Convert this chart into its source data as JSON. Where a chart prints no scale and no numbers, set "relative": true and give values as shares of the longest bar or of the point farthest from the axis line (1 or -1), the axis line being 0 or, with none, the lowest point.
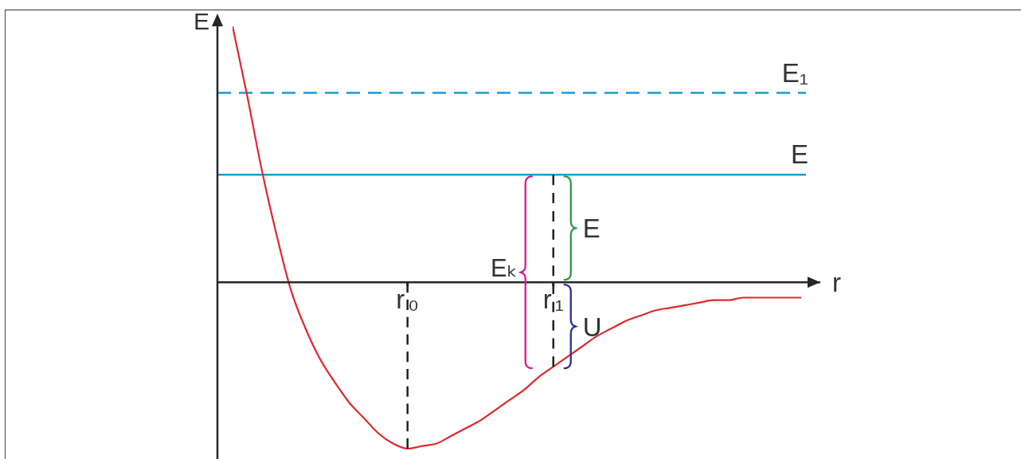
{
  "chart_data": {
    "type": "line",
    "relative": true,
    "xlabel": "r",
    "ylabel": "E",
    "marker": "none",
    "categories": [
      null,
      null,
      null,
      null,
      null,
      null,
      null,
      null,
      null,
      null,
      null,
      null,
      "r₀",
      null,
      null,
      null,
      null,
      null,
      null,
      null,
      null,
      null,
      "r₁",
      null,
      null,
      null,
      null,
      null,
      null,
      null,
      null,
      null,
      null,
      null,
      null,
      null,
      null,
      null,
      null,
      null
    ],
    "series": [
      {
        "color": "#e3262d",
        "values": [
          1.0,
          0.73,
          0.44,
          0.19,
          -0.03,
          -0.18,
          -0.3,
          -0.39,
          -0.47,
          -0.53,
          -0.59,
          -0.63,
          -0.65,
          -0.64,
          -0.63,
          -0.6,
          -0.57,
          -0.54,
          -0.5,
          -0.46,
          -0.42,
          -0.37,
          -0.33,
          -0.29,
          -0.25,
          -0.21,
          -0.18,
          -0.15,
          -0.13,
          -0.11,
          -0.1,
          -0.09,
          -0.08,
          -0.07,
          -0.07,
          -0.06,
          -0.06,
          -0.06,
          -0.06,
          -0.06
        ]
      },
      {
        "color": "#222222",
        "line_style": "dashed",
        "x": [
          "r₀",
          "r₀"
        ],
        "values": [
          0,
          -0.65
        ]
      },
      {
        "color": "#222222",
        "line_style": "dashed",
        "x": [
          "r₁",
          "r₁"
        ],
        "values": [
          0.42,
          -0.33
        ]
      }
    ],
    "ref_lines": [
      {
        "axis": "y",
        "value": 0.74,
        "label": "E₁",
        "color": "#1c9ad6",
        "line_style": "dashed"
      },
      {
        "axis": "y",
        "value": 0.42,
        "label": "E",
        "color": "#1c9ad6"
      }
    ],
    "annotations": [
      "Eₖ",
      "E",
      "U"
    ]
  }
}
